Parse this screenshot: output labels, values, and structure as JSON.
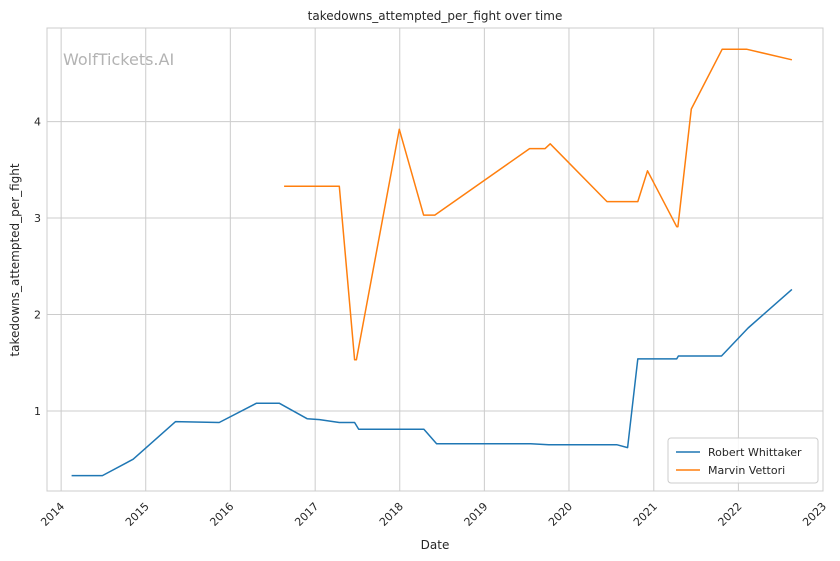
{
  "watermark": "WolfTickets.AI",
  "colors": {
    "series_0": "#1f77b4",
    "series_1": "#ff7f0e",
    "grid": "#cccccc",
    "axis": "#cccccc"
  },
  "chart_data": {
    "type": "line",
    "title": "takedowns_attempted_per_fight over time",
    "xlabel": "Date",
    "ylabel": "takedowns_attempted_per_fight",
    "x_ticks": [
      "2014",
      "2015",
      "2016",
      "2017",
      "2018",
      "2019",
      "2020",
      "2021",
      "2022",
      "2023"
    ],
    "y_ticks": [
      "1",
      "2",
      "3",
      "4"
    ],
    "xlim": [
      "2013-11-01",
      "2023-01-01"
    ],
    "ylim": [
      0.17,
      4.97
    ],
    "grid": true,
    "legend": "bottom-right",
    "series": [
      {
        "name": "Robert Whittaker",
        "color": "#1f77b4",
        "points": [
          [
            "2014-02-15",
            0.33
          ],
          [
            "2014-06-28",
            0.33
          ],
          [
            "2014-11-08",
            0.5
          ],
          [
            "2015-05-10",
            0.89
          ],
          [
            "2015-11-14",
            0.88
          ],
          [
            "2016-04-23",
            1.08
          ],
          [
            "2016-07-30",
            1.08
          ],
          [
            "2016-11-27",
            0.92
          ],
          [
            "2017-01-20",
            0.91
          ],
          [
            "2017-04-15",
            0.88
          ],
          [
            "2017-06-20",
            0.88
          ],
          [
            "2017-07-08",
            0.81
          ],
          [
            "2018-03-01",
            0.81
          ],
          [
            "2018-04-15",
            0.81
          ],
          [
            "2018-06-09",
            0.66
          ],
          [
            "2019-02-10",
            0.66
          ],
          [
            "2019-07-20",
            0.66
          ],
          [
            "2019-10-06",
            0.65
          ],
          [
            "2020-06-10",
            0.65
          ],
          [
            "2020-07-25",
            0.65
          ],
          [
            "2020-09-10",
            0.62
          ],
          [
            "2020-10-24",
            1.54
          ],
          [
            "2021-01-10",
            1.54
          ],
          [
            "2021-04-10",
            1.54
          ],
          [
            "2021-04-17",
            1.57
          ],
          [
            "2021-10-20",
            1.57
          ],
          [
            "2022-02-12",
            1.86
          ],
          [
            "2022-08-20",
            2.26
          ]
        ]
      },
      {
        "name": "Marvin Vettori",
        "color": "#ff7f0e",
        "points": [
          [
            "2016-08-20",
            3.33
          ],
          [
            "2016-12-20",
            3.33
          ],
          [
            "2017-04-15",
            3.33
          ],
          [
            "2017-06-20",
            1.53
          ],
          [
            "2017-06-28",
            1.53
          ],
          [
            "2017-12-30",
            3.92
          ],
          [
            "2018-04-14",
            3.03
          ],
          [
            "2018-06-01",
            3.03
          ],
          [
            "2019-07-15",
            3.72
          ],
          [
            "2019-09-20",
            3.72
          ],
          [
            "2019-10-12",
            3.77
          ],
          [
            "2020-06-13",
            3.17
          ],
          [
            "2020-10-24",
            3.17
          ],
          [
            "2020-12-05",
            3.49
          ],
          [
            "2021-04-10",
            2.91
          ],
          [
            "2021-04-15",
            2.91
          ],
          [
            "2021-06-12",
            4.13
          ],
          [
            "2021-10-23",
            4.75
          ],
          [
            "2022-02-05",
            4.75
          ],
          [
            "2022-08-20",
            4.64
          ]
        ]
      }
    ]
  }
}
